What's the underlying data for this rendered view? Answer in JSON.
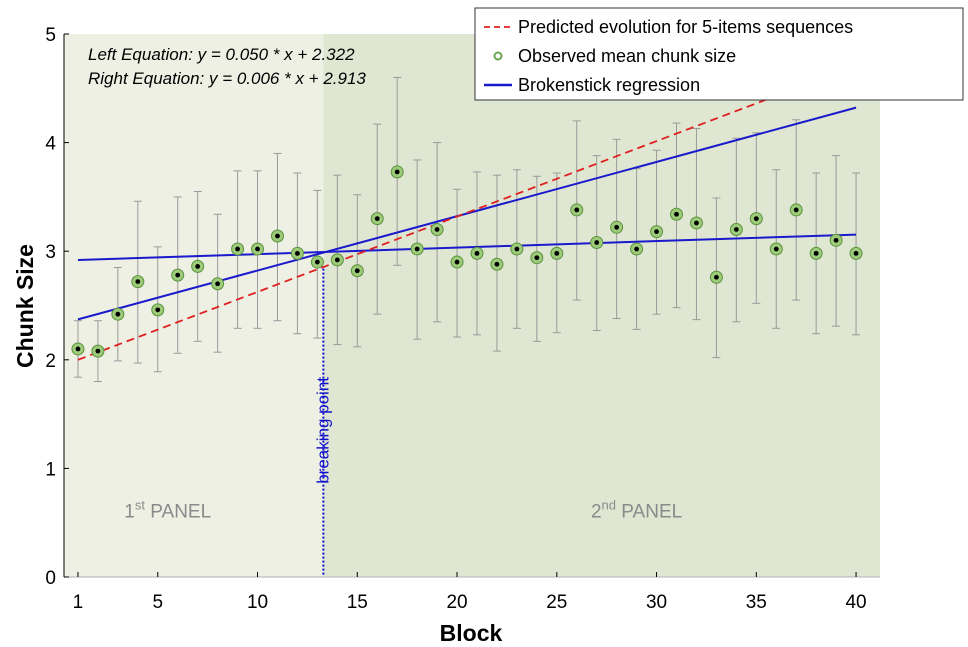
{
  "chart_data": {
    "type": "scatter",
    "xlabel": "Block",
    "ylabel": "Chunk Size",
    "xlim": [
      0.3,
      41.2
    ],
    "ylim": [
      0,
      5
    ],
    "x_ticks": [
      1,
      5,
      10,
      15,
      20,
      25,
      30,
      35,
      40
    ],
    "y_ticks": [
      0,
      1,
      2,
      3,
      4,
      5
    ],
    "breakpoint_x": 13.3,
    "breakpoint_label": "breaking point",
    "panels": [
      {
        "x_from": 0.3,
        "x_to": 13.3,
        "color": "#eef0e4",
        "label_base": "1",
        "label_sup": "st",
        "label_rest": " PANEL",
        "label_x": 5.5,
        "label_y": 0.55
      },
      {
        "x_from": 13.3,
        "x_to": 41.2,
        "color": "#dfe7d2",
        "label_base": "2",
        "label_sup": "nd",
        "label_rest": " PANEL",
        "label_x": 29,
        "label_y": 0.55
      }
    ],
    "equations": [
      "Left  Equation: y = 0.050 * x + 2.322",
      "Right Equation: y = 0.006 * x + 2.913"
    ],
    "legend": {
      "position": "top-right",
      "items": [
        {
          "label": "Predicted evolution for 5-items sequences",
          "style": "dashed",
          "color": "#e02020"
        },
        {
          "label": "Observed mean chunk size",
          "style": "marker",
          "color": "#6aa84f"
        },
        {
          "label": "Brokenstick regression",
          "style": "solid",
          "color": "#1a1acc"
        }
      ]
    },
    "series": [
      {
        "name": "Observed mean chunk size",
        "x": [
          1,
          2,
          3,
          4,
          5,
          6,
          7,
          8,
          9,
          10,
          11,
          12,
          13,
          14,
          15,
          16,
          17,
          18,
          19,
          20,
          21,
          22,
          23,
          24,
          25,
          26,
          27,
          28,
          29,
          30,
          31,
          32,
          33,
          34,
          35,
          36,
          37,
          38,
          39,
          40
        ],
        "y": [
          2.1,
          2.08,
          2.42,
          2.72,
          2.46,
          2.78,
          2.86,
          2.7,
          3.02,
          3.02,
          3.14,
          2.98,
          2.9,
          2.92,
          2.82,
          3.3,
          3.73,
          3.02,
          3.2,
          2.9,
          2.98,
          2.88,
          3.02,
          2.94,
          2.98,
          3.38,
          3.08,
          3.22,
          3.02,
          3.18,
          3.34,
          3.26,
          2.76,
          3.2,
          3.3,
          3.02,
          3.38,
          2.98,
          3.1,
          2.98
        ],
        "err_low": [
          1.84,
          1.8,
          1.99,
          1.97,
          1.89,
          2.06,
          2.17,
          2.07,
          2.29,
          2.29,
          2.36,
          2.24,
          2.2,
          2.14,
          2.12,
          2.42,
          2.87,
          2.19,
          2.35,
          2.21,
          2.23,
          2.08,
          2.29,
          2.17,
          2.25,
          2.55,
          2.27,
          2.38,
          2.28,
          2.42,
          2.48,
          2.37,
          2.02,
          2.35,
          2.52,
          2.29,
          2.55,
          2.24,
          2.31,
          2.23
        ],
        "err_high": [
          2.36,
          2.36,
          2.85,
          3.46,
          3.04,
          3.5,
          3.55,
          3.34,
          3.74,
          3.74,
          3.9,
          3.72,
          3.56,
          3.7,
          3.52,
          4.17,
          4.6,
          3.84,
          4.0,
          3.57,
          3.73,
          3.7,
          3.75,
          3.69,
          3.72,
          4.2,
          3.88,
          4.03,
          3.76,
          3.93,
          4.18,
          4.13,
          3.49,
          4.04,
          4.09,
          3.75,
          4.21,
          3.72,
          3.88,
          3.72
        ]
      },
      {
        "name": "Brokenstick regression",
        "style": "solid",
        "x": [
          1,
          40
        ],
        "y": [
          2.372,
          4.322
        ]
      },
      {
        "name": "Brokenstick regression",
        "style": "solid",
        "x": [
          1,
          40
        ],
        "y": [
          2.919,
          3.153
        ]
      },
      {
        "name": "Predicted evolution for 5-items sequences",
        "style": "dashed",
        "x": [
          1,
          37
        ],
        "y": [
          2.0,
          4.5
        ]
      }
    ]
  }
}
